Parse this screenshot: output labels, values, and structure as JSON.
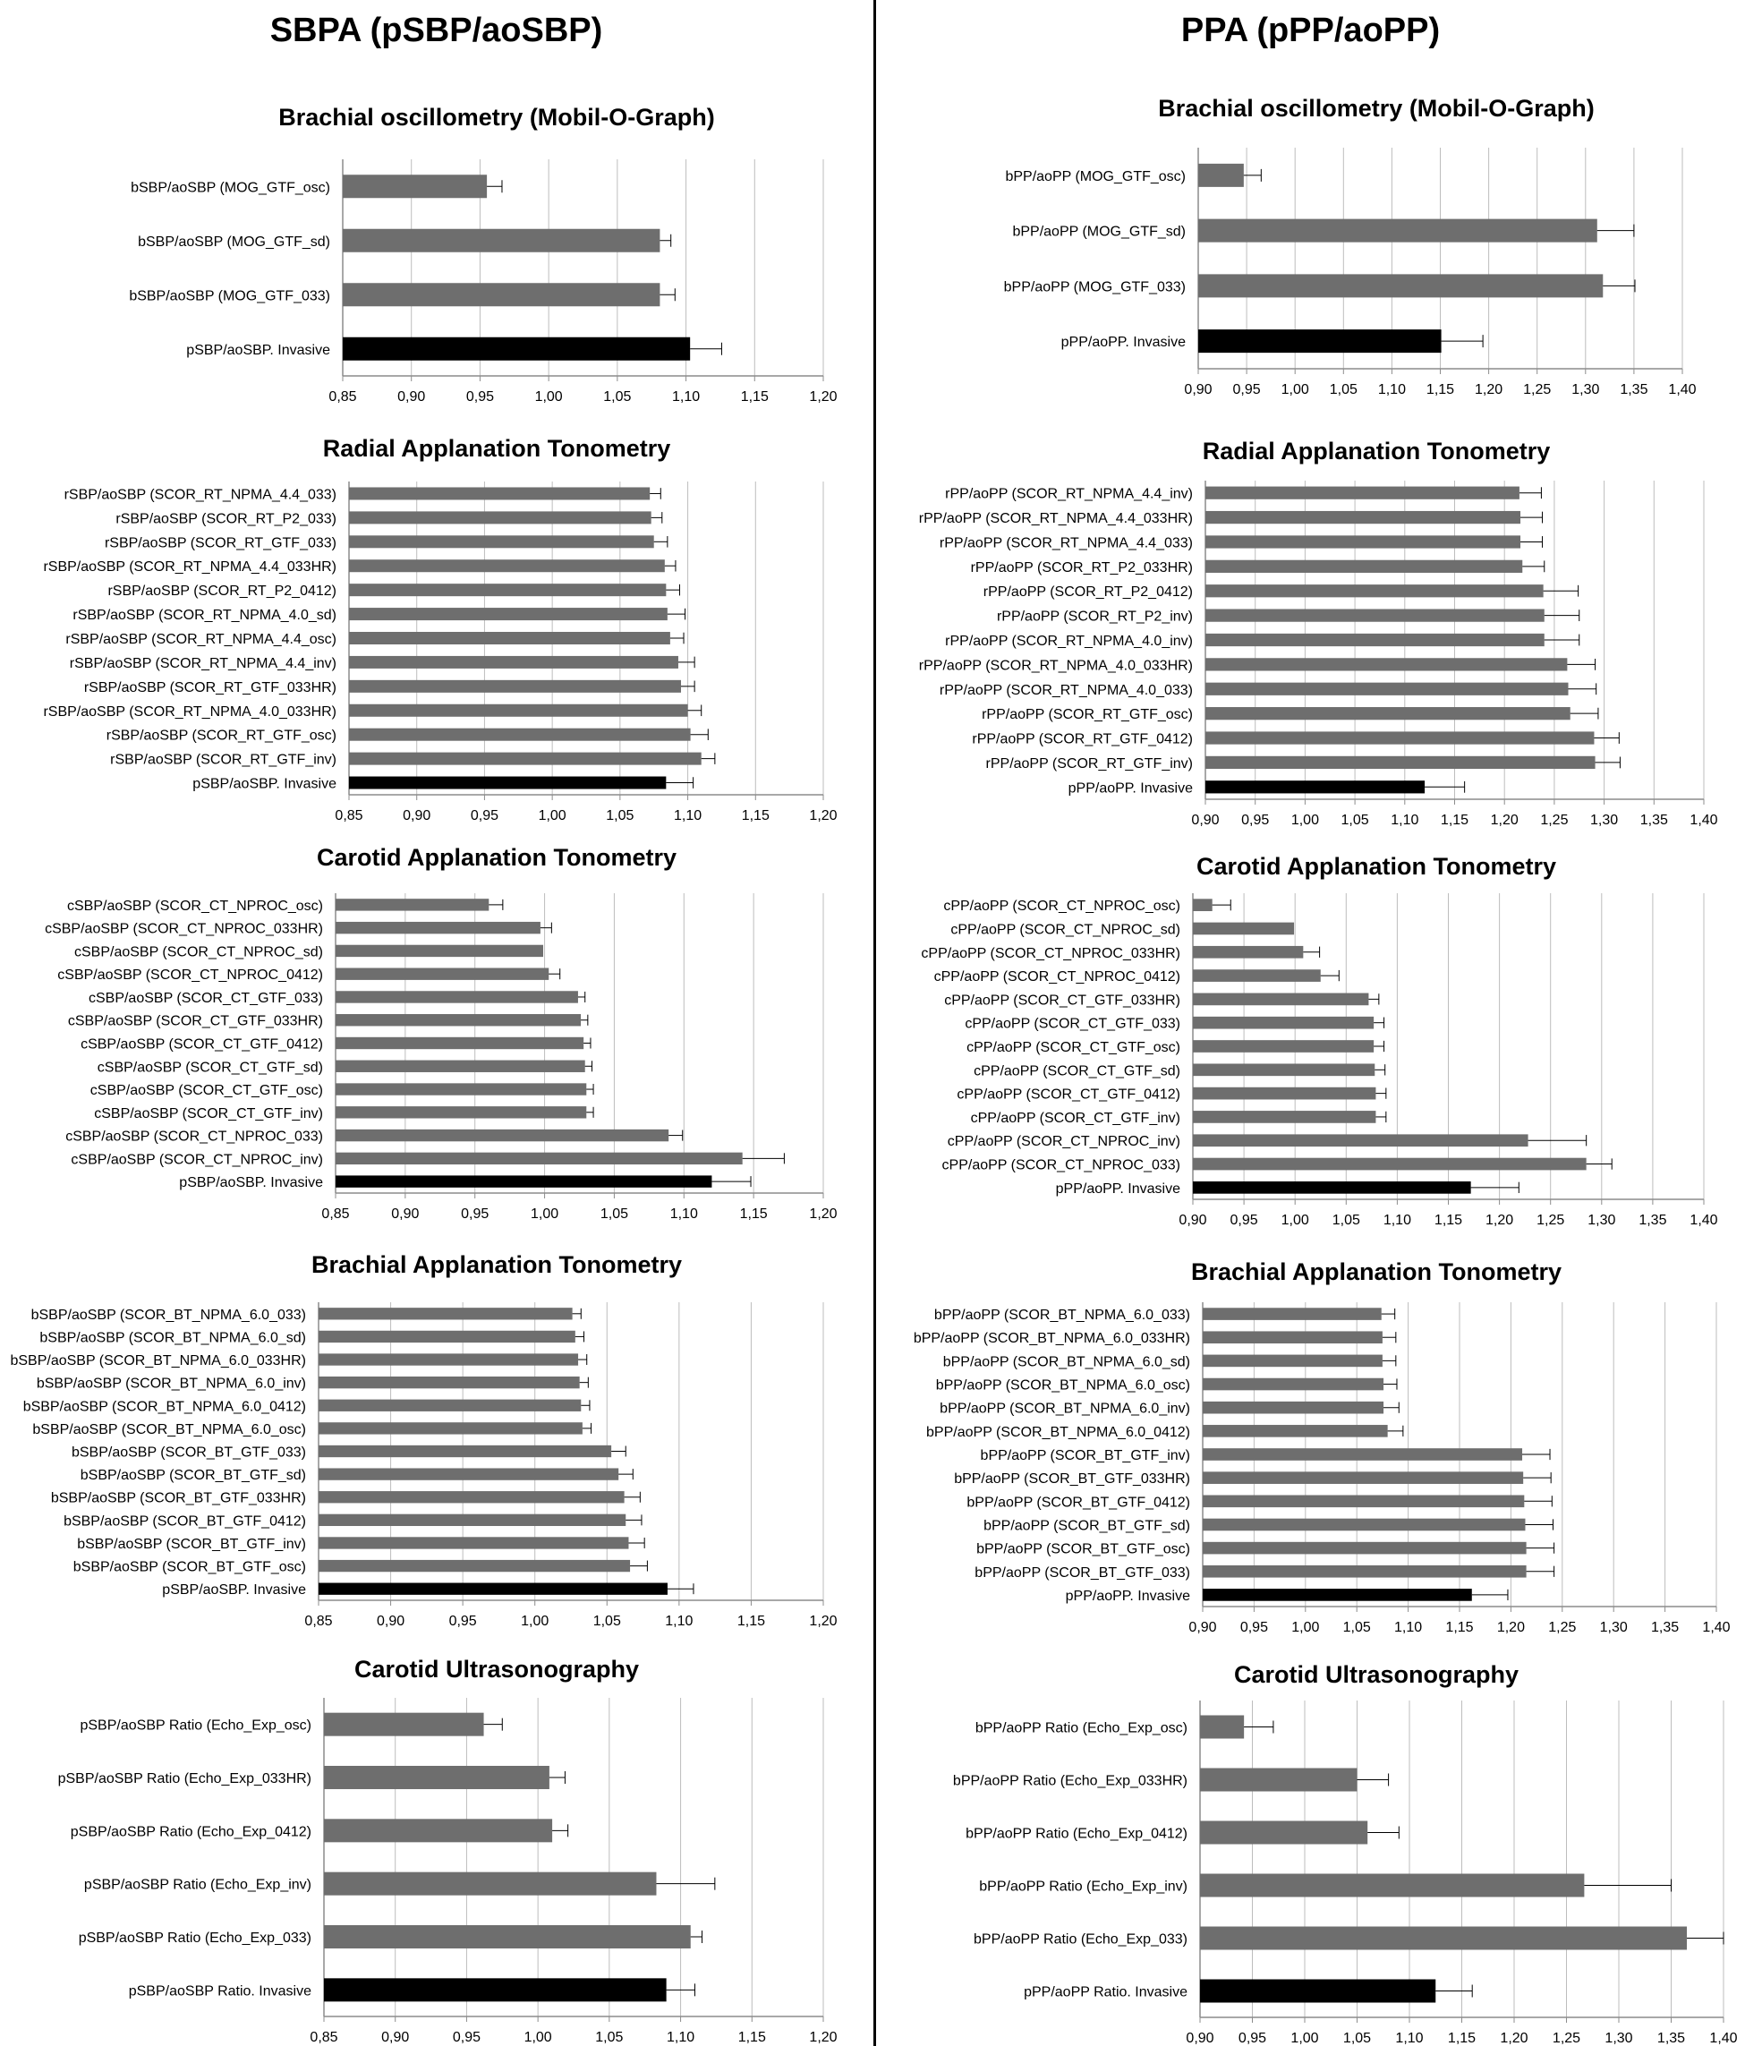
{
  "headers": {
    "left": "SBPA (pSBP/aoSBP)",
    "right": "PPA (pPP/aoPP)"
  },
  "colors": {
    "bar": "#6e6e6e",
    "reference_bar": "#000000",
    "grid": "#bdbdbd",
    "axis": "#8c8c8c"
  },
  "chart_data": [
    {
      "type": "bar",
      "orientation": "horizontal",
      "title": "Brachial oscillometry (Mobil-O-Graph)",
      "xlim": [
        0.85,
        1.2
      ],
      "tick_step": 0.05,
      "grid": true,
      "ticks": [
        "0,85",
        "0,90",
        "0,95",
        "1,00",
        "1,05",
        "1,10",
        "1,15",
        "1,20"
      ],
      "categories": [
        "bSBP/aoSBP (MOG_GTF_osc)",
        "bSBP/aoSBP (MOG_GTF_sd)",
        "bSBP/aoSBP (MOG_GTF_033)",
        "pSBP/aoSBP. Invasive"
      ],
      "values": [
        0.955,
        1.081,
        1.081,
        1.103
      ],
      "errors": [
        0.011,
        0.008,
        0.011,
        0.023
      ],
      "reference": [
        false,
        false,
        false,
        true
      ]
    },
    {
      "type": "bar",
      "orientation": "horizontal",
      "title": "Radial Applanation Tonometry",
      "xlim": [
        0.85,
        1.2
      ],
      "tick_step": 0.05,
      "grid": true,
      "ticks": [
        "0,85",
        "0,90",
        "0,95",
        "1,00",
        "1,05",
        "1,10",
        "1,15",
        "1,20"
      ],
      "categories": [
        "rSBP/aoSBP (SCOR_RT_NPMA_4.4_033)",
        "rSBP/aoSBP (SCOR_RT_P2_033)",
        "rSBP/aoSBP (SCOR_RT_GTF_033)",
        "rSBP/aoSBP (SCOR_RT_NPMA_4.4_033HR)",
        "rSBP/aoSBP (SCOR_RT_P2_0412)",
        "rSBP/aoSBP (SCOR_RT_NPMA_4.0_sd)",
        "rSBP/aoSBP (SCOR_RT_NPMA_4.4_osc)",
        "rSBP/aoSBP (SCOR_RT_NPMA_4.4_inv)",
        "rSBP/aoSBP (SCOR_RT_GTF_033HR)",
        "rSBP/aoSBP (SCOR_RT_NPMA_4.0_033HR)",
        "rSBP/aoSBP (SCOR_RT_GTF_osc)",
        "rSBP/aoSBP (SCOR_RT_GTF_inv)",
        "pSBP/aoSBP. Invasive"
      ],
      "values": [
        1.072,
        1.073,
        1.075,
        1.083,
        1.084,
        1.085,
        1.087,
        1.093,
        1.095,
        1.1,
        1.102,
        1.11,
        1.084
      ],
      "errors": [
        0.008,
        0.008,
        0.01,
        0.008,
        0.01,
        0.013,
        0.01,
        0.012,
        0.01,
        0.01,
        0.013,
        0.01,
        0.02
      ],
      "reference": [
        false,
        false,
        false,
        false,
        false,
        false,
        false,
        false,
        false,
        false,
        false,
        false,
        true
      ]
    },
    {
      "type": "bar",
      "orientation": "horizontal",
      "title": "Carotid Applanation Tonometry",
      "xlim": [
        0.85,
        1.2
      ],
      "tick_step": 0.05,
      "grid": true,
      "ticks": [
        "0,85",
        "0,90",
        "0,95",
        "1,00",
        "1,05",
        "1,10",
        "1,15",
        "1,20"
      ],
      "categories": [
        "cSBP/aoSBP (SCOR_CT_NPROC_osc)",
        "cSBP/aoSBP (SCOR_CT_NPROC_033HR)",
        "cSBP/aoSBP (SCOR_CT_NPROC_sd)",
        "cSBP/aoSBP (SCOR_CT_NPROC_0412)",
        "cSBP/aoSBP (SCOR_CT_GTF_033)",
        "cSBP/aoSBP (SCOR_CT_GTF_033HR)",
        "cSBP/aoSBP (SCOR_CT_GTF_0412)",
        "cSBP/aoSBP (SCOR_CT_GTF_sd)",
        "cSBP/aoSBP (SCOR_CT_GTF_osc)",
        "cSBP/aoSBP (SCOR_CT_GTF_inv)",
        "cSBP/aoSBP (SCOR_CT_NPROC_033)",
        "cSBP/aoSBP (SCOR_CT_NPROC_inv)",
        "pSBP/aoSBP. Invasive"
      ],
      "values": [
        0.96,
        0.997,
        0.999,
        1.003,
        1.024,
        1.026,
        1.028,
        1.029,
        1.03,
        1.03,
        1.089,
        1.142,
        1.12
      ],
      "errors": [
        0.01,
        0.008,
        0.0,
        0.008,
        0.005,
        0.005,
        0.005,
        0.005,
        0.005,
        0.005,
        0.01,
        0.03,
        0.028
      ],
      "reference": [
        false,
        false,
        false,
        false,
        false,
        false,
        false,
        false,
        false,
        false,
        false,
        false,
        true
      ]
    },
    {
      "type": "bar",
      "orientation": "horizontal",
      "title": "Brachial Applanation Tonometry",
      "xlim": [
        0.85,
        1.2
      ],
      "tick_step": 0.05,
      "grid": true,
      "ticks": [
        "0,85",
        "0,90",
        "0,95",
        "1,00",
        "1,05",
        "1,10",
        "1,15",
        "1,20"
      ],
      "categories": [
        "bSBP/aoSBP (SCOR_BT_NPMA_6.0_033)",
        "bSBP/aoSBP (SCOR_BT_NPMA_6.0_sd)",
        "bSBP/aoSBP (SCOR_BT_NPMA_6.0_033HR)",
        "bSBP/aoSBP (SCOR_BT_NPMA_6.0_inv)",
        "bSBP/aoSBP (SCOR_BT_NPMA_6.0_0412)",
        "bSBP/aoSBP (SCOR_BT_NPMA_6.0_osc)",
        "bSBP/aoSBP (SCOR_BT_GTF_033)",
        "bSBP/aoSBP (SCOR_BT_GTF_sd)",
        "bSBP/aoSBP (SCOR_BT_GTF_033HR)",
        "bSBP/aoSBP (SCOR_BT_GTF_0412)",
        "bSBP/aoSBP (SCOR_BT_GTF_inv)",
        "bSBP/aoSBP (SCOR_BT_GTF_osc)",
        "pSBP/aoSBP. Invasive"
      ],
      "values": [
        1.026,
        1.028,
        1.03,
        1.031,
        1.032,
        1.033,
        1.053,
        1.058,
        1.062,
        1.063,
        1.065,
        1.066,
        1.092
      ],
      "errors": [
        0.006,
        0.006,
        0.006,
        0.006,
        0.006,
        0.006,
        0.01,
        0.01,
        0.011,
        0.011,
        0.011,
        0.012,
        0.018
      ],
      "reference": [
        false,
        false,
        false,
        false,
        false,
        false,
        false,
        false,
        false,
        false,
        false,
        false,
        true
      ]
    },
    {
      "type": "bar",
      "orientation": "horizontal",
      "title": "Carotid Ultrasonography",
      "xlim": [
        0.85,
        1.2
      ],
      "tick_step": 0.05,
      "grid": true,
      "ticks": [
        "0,85",
        "0,90",
        "0,95",
        "1,00",
        "1,05",
        "1,10",
        "1,15",
        "1,20"
      ],
      "categories": [
        "pSBP/aoSBP Ratio (Echo_Exp_osc)",
        "pSBP/aoSBP Ratio (Echo_Exp_033HR)",
        "pSBP/aoSBP Ratio (Echo_Exp_0412)",
        "pSBP/aoSBP Ratio (Echo_Exp_inv)",
        "pSBP/aoSBP Ratio (Echo_Exp_033)",
        "pSBP/aoSBP Ratio. Invasive"
      ],
      "values": [
        0.962,
        1.008,
        1.01,
        1.083,
        1.107,
        1.09
      ],
      "errors": [
        0.013,
        0.011,
        0.011,
        0.041,
        0.008,
        0.02
      ],
      "reference": [
        false,
        false,
        false,
        false,
        false,
        true
      ]
    },
    {
      "type": "bar",
      "orientation": "horizontal",
      "title": "Brachial oscillometry (Mobil-O-Graph)",
      "xlim": [
        0.9,
        1.4
      ],
      "tick_step": 0.05,
      "grid": true,
      "ticks": [
        "0,90",
        "0,95",
        "1,00",
        "1,05",
        "1,10",
        "1,15",
        "1,20",
        "1,25",
        "1,30",
        "1,35",
        "1,40"
      ],
      "categories": [
        "bPP/aoPP (MOG_GTF_osc)",
        "bPP/aoPP (MOG_GTF_sd)",
        "bPP/aoPP (MOG_GTF_033)",
        "pPP/aoPP. Invasive"
      ],
      "values": [
        0.947,
        1.312,
        1.318,
        1.151
      ],
      "errors": [
        0.018,
        0.038,
        0.033,
        0.043
      ],
      "reference": [
        false,
        false,
        false,
        true
      ]
    },
    {
      "type": "bar",
      "orientation": "horizontal",
      "title": "Radial Applanation Tonometry",
      "xlim": [
        0.9,
        1.4
      ],
      "tick_step": 0.05,
      "grid": true,
      "ticks": [
        "0,90",
        "0,95",
        "1,00",
        "1,05",
        "1,10",
        "1,15",
        "1,20",
        "1,25",
        "1,30",
        "1,35",
        "1,40"
      ],
      "categories": [
        "rPP/aoPP (SCOR_RT_NPMA_4.4_inv)",
        "rPP/aoPP (SCOR_RT_NPMA_4.4_033HR)",
        "rPP/aoPP (SCOR_RT_NPMA_4.4_033)",
        "rPP/aoPP (SCOR_RT_P2_033HR)",
        "rPP/aoPP (SCOR_RT_P2_0412)",
        "rPP/aoPP (SCOR_RT_P2_inv)",
        "rPP/aoPP (SCOR_RT_NPMA_4.0_inv)",
        "rPP/aoPP (SCOR_RT_NPMA_4.0_033HR)",
        "rPP/aoPP (SCOR_RT_NPMA_4.0_033)",
        "rPP/aoPP (SCOR_RT_GTF_osc)",
        "rPP/aoPP (SCOR_RT_GTF_0412)",
        "rPP/aoPP (SCOR_RT_GTF_inv)",
        "pPP/aoPP. Invasive"
      ],
      "values": [
        1.215,
        1.216,
        1.216,
        1.218,
        1.239,
        1.24,
        1.24,
        1.263,
        1.264,
        1.266,
        1.29,
        1.291,
        1.12
      ],
      "errors": [
        0.022,
        0.022,
        0.022,
        0.022,
        0.035,
        0.035,
        0.035,
        0.028,
        0.028,
        0.028,
        0.025,
        0.025,
        0.04
      ],
      "reference": [
        false,
        false,
        false,
        false,
        false,
        false,
        false,
        false,
        false,
        false,
        false,
        false,
        true
      ]
    },
    {
      "type": "bar",
      "orientation": "horizontal",
      "title": "Carotid Applanation Tonometry",
      "xlim": [
        0.9,
        1.4
      ],
      "tick_step": 0.05,
      "grid": true,
      "ticks": [
        "0,90",
        "0,95",
        "1,00",
        "1,05",
        "1,10",
        "1,15",
        "1,20",
        "1,25",
        "1,30",
        "1,35",
        "1,40"
      ],
      "categories": [
        "cPP/aoPP (SCOR_CT_NPROC_osc)",
        "cPP/aoPP (SCOR_CT_NPROC_sd)",
        "cPP/aoPP (SCOR_CT_NPROC_033HR)",
        "cPP/aoPP (SCOR_CT_NPROC_0412)",
        "cPP/aoPP (SCOR_CT_GTF_033HR)",
        "cPP/aoPP (SCOR_CT_GTF_033)",
        "cPP/aoPP (SCOR_CT_GTF_osc)",
        "cPP/aoPP (SCOR_CT_GTF_sd)",
        "cPP/aoPP (SCOR_CT_GTF_0412)",
        "cPP/aoPP (SCOR_CT_GTF_inv)",
        "cPP/aoPP (SCOR_CT_NPROC_inv)",
        "cPP/aoPP (SCOR_CT_NPROC_033)",
        "pPP/aoPP. Invasive"
      ],
      "values": [
        0.919,
        0.999,
        1.008,
        1.025,
        1.072,
        1.077,
        1.077,
        1.078,
        1.079,
        1.079,
        1.228,
        1.285,
        1.172
      ],
      "errors": [
        0.018,
        0.0,
        0.016,
        0.018,
        0.01,
        0.01,
        0.01,
        0.01,
        0.01,
        0.01,
        0.057,
        0.025,
        0.047
      ],
      "reference": [
        false,
        false,
        false,
        false,
        false,
        false,
        false,
        false,
        false,
        false,
        false,
        false,
        true
      ]
    },
    {
      "type": "bar",
      "orientation": "horizontal",
      "title": "Brachial Applanation Tonometry",
      "xlim": [
        0.9,
        1.4
      ],
      "tick_step": 0.05,
      "grid": true,
      "ticks": [
        "0,90",
        "0,95",
        "1,00",
        "1,05",
        "1,10",
        "1,15",
        "1,20",
        "1,25",
        "1,30",
        "1,35",
        "1,40"
      ],
      "categories": [
        "bPP/aoPP (SCOR_BT_NPMA_6.0_033)",
        "bPP/aoPP (SCOR_BT_NPMA_6.0_033HR)",
        "bPP/aoPP (SCOR_BT_NPMA_6.0_sd)",
        "bPP/aoPP (SCOR_BT_NPMA_6.0_osc)",
        "bPP/aoPP (SCOR_BT_NPMA_6.0_inv)",
        "bPP/aoPP (SCOR_BT_NPMA_6.0_0412)",
        "bPP/aoPP (SCOR_BT_GTF_inv)",
        "bPP/aoPP (SCOR_BT_GTF_033HR)",
        "bPP/aoPP (SCOR_BT_GTF_0412)",
        "bPP/aoPP (SCOR_BT_GTF_sd)",
        "bPP/aoPP (SCOR_BT_GTF_osc)",
        "bPP/aoPP (SCOR_BT_GTF_033)",
        "pPP/aoPP. Invasive"
      ],
      "values": [
        1.074,
        1.075,
        1.075,
        1.076,
        1.076,
        1.08,
        1.211,
        1.212,
        1.213,
        1.214,
        1.215,
        1.215,
        1.162
      ],
      "errors": [
        0.013,
        0.013,
        0.013,
        0.013,
        0.015,
        0.015,
        0.027,
        0.027,
        0.027,
        0.027,
        0.027,
        0.027,
        0.035
      ],
      "reference": [
        false,
        false,
        false,
        false,
        false,
        false,
        false,
        false,
        false,
        false,
        false,
        false,
        true
      ]
    },
    {
      "type": "bar",
      "orientation": "horizontal",
      "title": "Carotid Ultrasonography",
      "xlim": [
        0.9,
        1.4
      ],
      "tick_step": 0.05,
      "grid": true,
      "ticks": [
        "0,90",
        "0,95",
        "1,00",
        "1,05",
        "1,10",
        "1,15",
        "1,20",
        "1,25",
        "1,30",
        "1,35",
        "1,40"
      ],
      "categories": [
        "bPP/aoPP Ratio (Echo_Exp_osc)",
        "bPP/aoPP Ratio (Echo_Exp_033HR)",
        "bPP/aoPP Ratio (Echo_Exp_0412)",
        "bPP/aoPP Ratio (Echo_Exp_inv)",
        "bPP/aoPP Ratio (Echo_Exp_033)",
        "pPP/aoPP Ratio. Invasive"
      ],
      "values": [
        0.942,
        1.05,
        1.06,
        1.267,
        1.365,
        1.125
      ],
      "errors": [
        0.028,
        0.03,
        0.03,
        0.083,
        0.035,
        0.035
      ],
      "reference": [
        false,
        false,
        false,
        false,
        false,
        true
      ]
    }
  ]
}
